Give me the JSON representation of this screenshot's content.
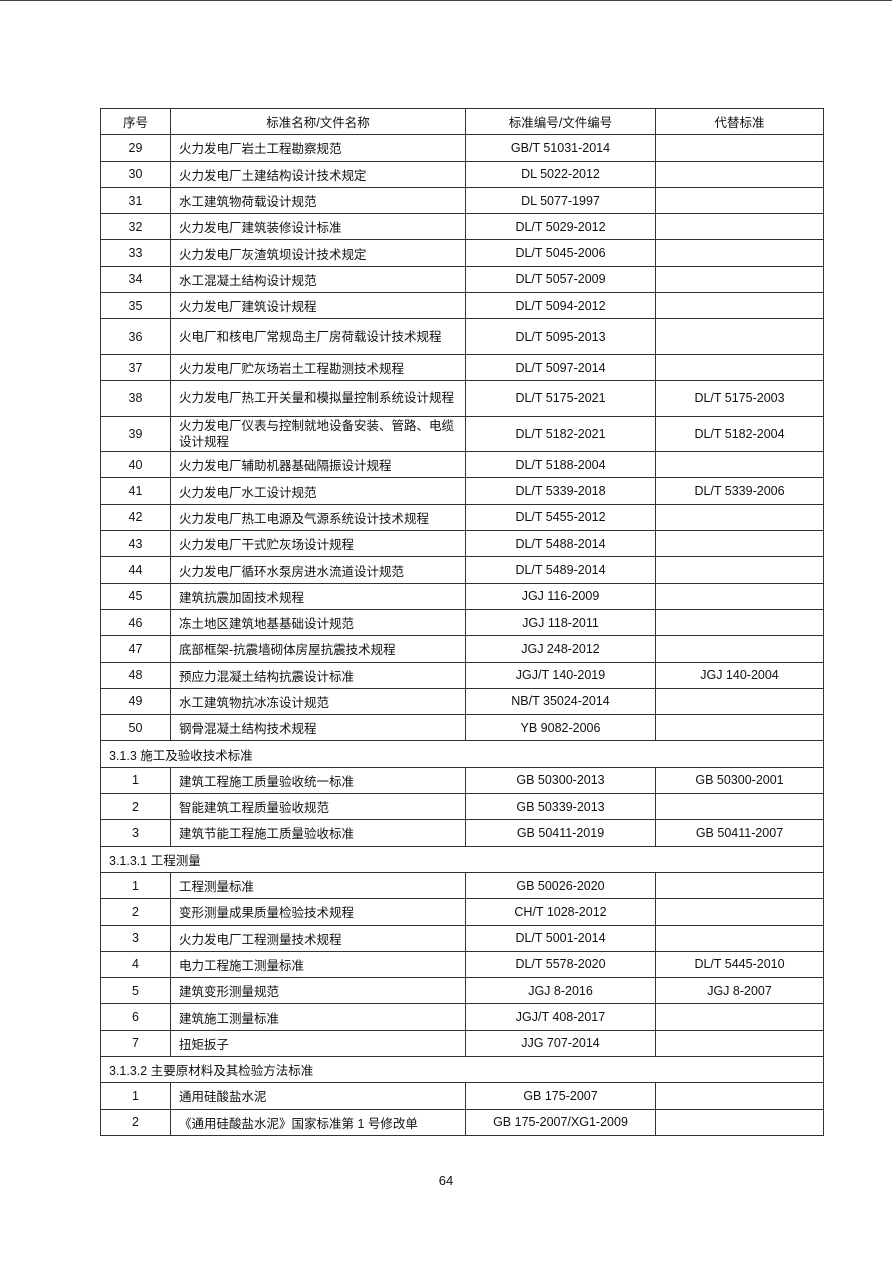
{
  "header": {
    "no": "序号",
    "name": "标准名称/文件名称",
    "code": "标准编号/文件编号",
    "replaces": "代替标准"
  },
  "rows": [
    {
      "no": "29",
      "name": "火力发电厂岩土工程勘察规范",
      "code": "GB/T 51031-2014",
      "replaces": ""
    },
    {
      "no": "30",
      "name": "火力发电厂土建结构设计技术规定",
      "code": "DL 5022-2012",
      "replaces": ""
    },
    {
      "no": "31",
      "name": "水工建筑物荷载设计规范",
      "code": "DL 5077-1997",
      "replaces": ""
    },
    {
      "no": "32",
      "name": "火力发电厂建筑装修设计标准",
      "code": "DL/T 5029-2012",
      "replaces": ""
    },
    {
      "no": "33",
      "name": "火力发电厂灰渣筑坝设计技术规定",
      "code": "DL/T 5045-2006",
      "replaces": ""
    },
    {
      "no": "34",
      "name": "水工混凝土结构设计规范",
      "code": "DL/T 5057-2009",
      "replaces": ""
    },
    {
      "no": "35",
      "name": "火力发电厂建筑设计规程",
      "code": "DL/T 5094-2012",
      "replaces": ""
    },
    {
      "no": "36",
      "name": "火电厂和核电厂常规岛主厂房荷载设计技术规程",
      "code": "DL/T 5095-2013",
      "replaces": "",
      "tall": true
    },
    {
      "no": "37",
      "name": "火力发电厂贮灰场岩土工程勘测技术规程",
      "code": "DL/T 5097-2014",
      "replaces": ""
    },
    {
      "no": "38",
      "name": "火力发电厂热工开关量和模拟量控制系统设计规程",
      "code": "DL/T 5175-2021",
      "replaces": "DL/T 5175-2003",
      "tall": true
    },
    {
      "no": "39",
      "name": "火力发电厂仪表与控制就地设备安装、管路、电缆设计规程",
      "code": "DL/T 5182-2021",
      "replaces": "DL/T 5182-2004",
      "tall": true
    },
    {
      "no": "40",
      "name": "火力发电厂辅助机器基础隔振设计规程",
      "code": "DL/T 5188-2004",
      "replaces": ""
    },
    {
      "no": "41",
      "name": "火力发电厂水工设计规范",
      "code": "DL/T 5339-2018",
      "replaces": "DL/T 5339-2006"
    },
    {
      "no": "42",
      "name": "火力发电厂热工电源及气源系统设计技术规程",
      "code": "DL/T 5455-2012",
      "replaces": ""
    },
    {
      "no": "43",
      "name": "火力发电厂干式贮灰场设计规程",
      "code": "DL/T 5488-2014",
      "replaces": ""
    },
    {
      "no": "44",
      "name": "火力发电厂循环水泵房进水流道设计规范",
      "code": "DL/T 5489-2014",
      "replaces": ""
    },
    {
      "no": "45",
      "name": "建筑抗震加固技术规程",
      "code": "JGJ 116-2009",
      "replaces": ""
    },
    {
      "no": "46",
      "name": "冻土地区建筑地基基础设计规范",
      "code": "JGJ 118-2011",
      "replaces": ""
    },
    {
      "no": "47",
      "name": "底部框架-抗震墙砌体房屋抗震技术规程",
      "code": "JGJ 248-2012",
      "replaces": ""
    },
    {
      "no": "48",
      "name": "预应力混凝土结构抗震设计标准",
      "code": "JGJ/T 140-2019",
      "replaces": "JGJ 140-2004"
    },
    {
      "no": "49",
      "name": "水工建筑物抗冰冻设计规范",
      "code": "NB/T 35024-2014",
      "replaces": ""
    },
    {
      "no": "50",
      "name": "钢骨混凝土结构技术规程",
      "code": "YB 9082-2006",
      "replaces": ""
    },
    {
      "section": "3.1.3 施工及验收技术标准"
    },
    {
      "no": "1",
      "name": "建筑工程施工质量验收统一标准",
      "code": "GB 50300-2013",
      "replaces": "GB 50300-2001"
    },
    {
      "no": "2",
      "name": "智能建筑工程质量验收规范",
      "code": "GB 50339-2013",
      "replaces": ""
    },
    {
      "no": "3",
      "name": "建筑节能工程施工质量验收标准",
      "code": "GB 50411-2019",
      "replaces": "GB 50411-2007"
    },
    {
      "section": "3.1.3.1 工程测量"
    },
    {
      "no": "1",
      "name": "工程测量标准",
      "code": "GB 50026-2020",
      "replaces": ""
    },
    {
      "no": "2",
      "name": "变形测量成果质量检验技术规程",
      "code": "CH/T 1028-2012",
      "replaces": ""
    },
    {
      "no": "3",
      "name": "火力发电厂工程测量技术规程",
      "code": "DL/T 5001-2014",
      "replaces": ""
    },
    {
      "no": "4",
      "name": "电力工程施工测量标准",
      "code": "DL/T 5578-2020",
      "replaces": "DL/T 5445-2010"
    },
    {
      "no": "5",
      "name": "建筑变形测量规范",
      "code": "JGJ 8-2016",
      "replaces": "JGJ 8-2007"
    },
    {
      "no": "6",
      "name": "建筑施工测量标准",
      "code": "JGJ/T 408-2017",
      "replaces": ""
    },
    {
      "no": "7",
      "name": "扭矩扳子",
      "code": "JJG 707-2014",
      "replaces": ""
    },
    {
      "section": "3.1.3.2 主要原材料及其检验方法标准"
    },
    {
      "no": "1",
      "name": "通用硅酸盐水泥",
      "code": "GB 175-2007",
      "replaces": ""
    },
    {
      "no": "2",
      "name": "《通用硅酸盐水泥》国家标准第 1 号修改单",
      "code": "GB 175-2007/XG1-2009",
      "replaces": ""
    }
  ],
  "page_number": "64"
}
